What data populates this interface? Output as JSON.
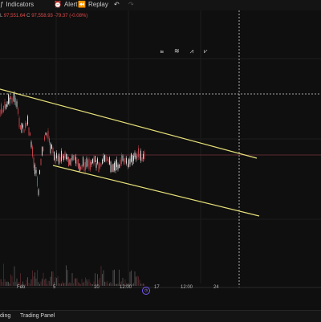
{
  "toolbar": {
    "indicators_label": "Indicators",
    "alert_label": "Alert",
    "replay_label": "Replay",
    "undo_icon": "↶",
    "redo_icon": "↷"
  },
  "ohlc": {
    "l_key": "L",
    "l_value": "97,551.64",
    "c_key": "C",
    "c_value": "97,558.93",
    "change": "-79.37 (-0.08%)"
  },
  "x_axis": {
    "labels": [
      "Feb",
      "5",
      "10",
      "12:00",
      "17",
      "12:00",
      "24"
    ]
  },
  "bottom": {
    "left_label": "ding",
    "trading_panel_label": "Trading Panel"
  },
  "colors": {
    "background": "#0f0f0f",
    "trendline": "#e6e07a",
    "crosshair": "#d8d8d8",
    "price_line": "#7a3340",
    "accent": "#7b5cff"
  },
  "icons": [
    "indicators-icon",
    "alert-icon",
    "replay-icon",
    "undo-icon",
    "redo-icon",
    "ruler-tools-icon",
    "pan-icon"
  ]
}
